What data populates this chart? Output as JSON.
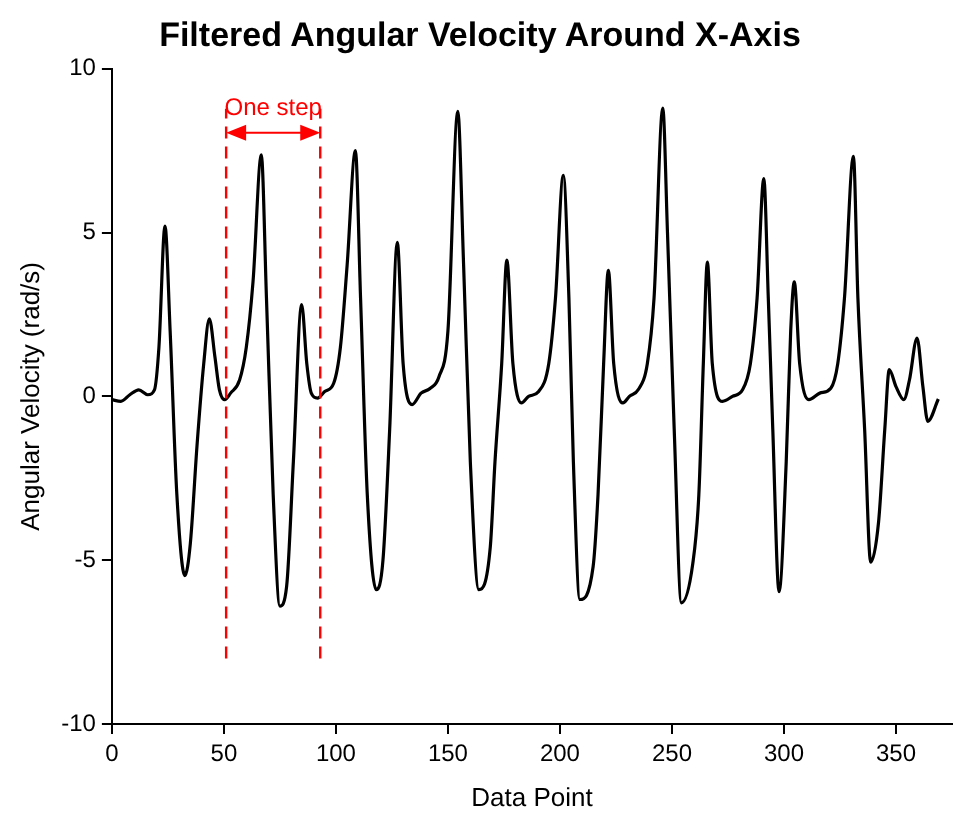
{
  "chart_data": {
    "type": "line",
    "title": "Filtered Angular Velocity Around X-Axis",
    "xlabel": "Data Point",
    "ylabel": "Angular Velocity (rad/s)",
    "xlim": [
      0,
      375
    ],
    "ylim": [
      -10,
      10
    ],
    "xticks": [
      0,
      50,
      100,
      150,
      200,
      250,
      300,
      350
    ],
    "yticks": [
      -10,
      -5,
      0,
      5,
      10
    ],
    "grid": false,
    "legend": false,
    "marker": "none",
    "line_style": "solid",
    "ref_lines": [
      {
        "axis": "x",
        "value": 51,
        "color": "#ff0000",
        "line_style": "dashed"
      },
      {
        "axis": "x",
        "value": 93,
        "color": "#ff0000",
        "line_style": "dashed"
      }
    ],
    "annotations": [
      "One step"
    ],
    "series": [
      {
        "color": "#000000",
        "x": [
          0,
          4,
          8,
          12,
          16,
          19,
          21,
          23.7,
          26,
          29,
          32.6,
          35,
          38,
          41,
          43.5,
          46,
          48,
          50.4,
          53,
          57,
          60,
          63,
          66.7,
          69,
          72,
          75,
          78,
          81,
          84.7,
          87,
          89,
          91.8,
          95,
          99,
          102,
          105,
          108.7,
          111,
          114,
          118,
          121,
          124,
          127.4,
          130,
          134,
          138,
          142,
          146,
          150,
          154.4,
          157,
          160,
          163.8,
          168.9,
          171,
          174,
          176.3,
          179,
          182.8,
          186,
          190.5,
          195,
          198,
          201.5,
          204,
          206,
          208.9,
          214.8,
          217,
          219.5,
          221.6,
          224,
          228.1,
          231,
          234.9,
          239,
          242,
          245.9,
          248,
          251,
          254.2,
          259.3,
          262,
          264,
          265.8,
          268,
          272.6,
          277,
          281.5,
          285,
          288,
          291,
          293,
          295,
          297.8,
          301,
          303,
          304.6,
          307,
          311.1,
          316,
          320.9,
          324,
          327,
          331,
          333,
          336,
          338.7,
          342.2,
          345,
          347,
          350,
          353.5,
          356,
          359.4,
          362,
          364.2,
          368.9
        ],
        "values": [
          -0.1,
          -0.15,
          0.05,
          0.2,
          0.05,
          0.2,
          1.5,
          5.2,
          2,
          -3,
          -5.47,
          -4.5,
          -1.5,
          1,
          2.37,
          1.2,
          0.2,
          -0.1,
          0.1,
          0.5,
          1.5,
          3.5,
          7.37,
          3,
          -3,
          -6.4,
          -5.8,
          -2,
          2.8,
          1,
          0.1,
          -0.05,
          0.15,
          0.4,
          1.5,
          4,
          7.5,
          3,
          -3,
          -5.9,
          -5,
          -1,
          4.7,
          1,
          -0.25,
          0.1,
          0.24,
          0.6,
          2,
          8.7,
          4,
          -2,
          -5.9,
          -4.6,
          -2,
          1,
          4.16,
          1,
          -0.2,
          0,
          0.15,
          1,
          3,
          6.75,
          3,
          -2,
          -6.2,
          -5.2,
          -3,
          1,
          3.85,
          1,
          -0.2,
          0,
          0.2,
          1,
          3,
          8.8,
          5,
          -1,
          -6.3,
          -5.1,
          -3,
          1,
          4.1,
          1,
          -0.15,
          0,
          0.2,
          1,
          3,
          6.65,
          3,
          -1,
          -5.96,
          -2,
          2,
          3.5,
          1,
          -0.1,
          0.1,
          0.25,
          1,
          3,
          7.33,
          3,
          -1,
          -5.06,
          -3.85,
          -1,
          0.82,
          0.3,
          -0.1,
          0.5,
          1.78,
          0.3,
          -0.76,
          -0.08
        ]
      }
    ]
  }
}
